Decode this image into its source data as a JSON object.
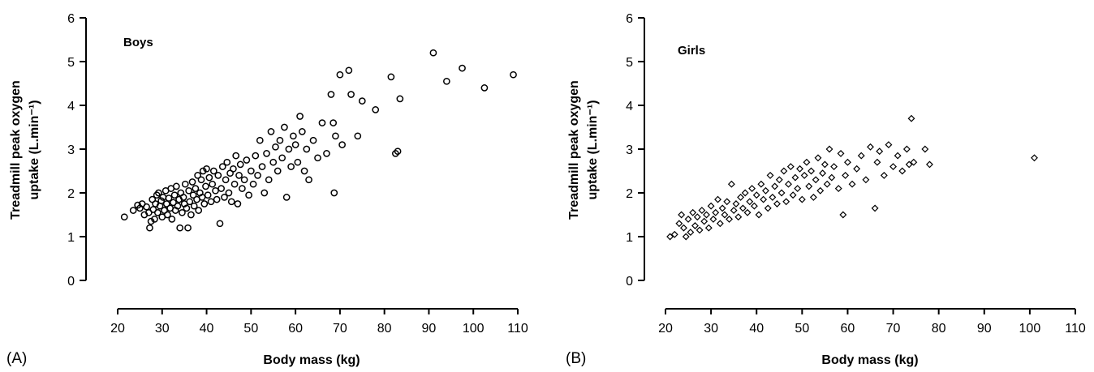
{
  "panels": [
    {
      "letter": "(A)",
      "title": "Boys",
      "ylabel_line1": "Treadmill peak oxygen",
      "ylabel_line2": "uptake (L.min⁻¹)",
      "xlabel": "Body mass (kg)"
    },
    {
      "letter": "(B)",
      "title": "Girls",
      "ylabel_line1": "Treadmill peak oxygen",
      "ylabel_line2": "uptake (L.min⁻¹)",
      "xlabel": "Body mass (kg)"
    }
  ],
  "chart_data": [
    {
      "type": "scatter",
      "title": "Boys",
      "xlabel": "Body mass (kg)",
      "ylabel": "Treadmill peak oxygen uptake (L.min⁻¹)",
      "xlim": [
        20,
        110
      ],
      "ylim": [
        0,
        6
      ],
      "xticks": [
        20,
        30,
        40,
        50,
        60,
        70,
        80,
        90,
        100,
        110
      ],
      "yticks": [
        0,
        1,
        2,
        3,
        4,
        5,
        6
      ],
      "marker": "circle",
      "series": [
        {
          "points": [
            [
              21.5,
              1.45
            ],
            [
              23.5,
              1.6
            ],
            [
              24.5,
              1.72
            ],
            [
              25,
              1.65
            ],
            [
              25.5,
              1.75
            ],
            [
              26,
              1.5
            ],
            [
              26.5,
              1.68
            ],
            [
              27,
              1.55
            ],
            [
              27.2,
              1.2
            ],
            [
              27.5,
              1.35
            ],
            [
              27.8,
              1.85
            ],
            [
              28,
              1.62
            ],
            [
              28.3,
              1.4
            ],
            [
              28.5,
              1.75
            ],
            [
              28.8,
              1.95
            ],
            [
              29,
              1.55
            ],
            [
              29.2,
              2.0
            ],
            [
              29.5,
              1.7
            ],
            [
              29.8,
              1.82
            ],
            [
              30,
              1.45
            ],
            [
              30.2,
              1.9
            ],
            [
              30.5,
              1.6
            ],
            [
              30.8,
              2.05
            ],
            [
              31,
              1.75
            ],
            [
              31.2,
              1.5
            ],
            [
              31.5,
              1.88
            ],
            [
              31.8,
              1.65
            ],
            [
              32,
              2.1
            ],
            [
              32.2,
              1.4
            ],
            [
              32.5,
              1.78
            ],
            [
              32.8,
              1.95
            ],
            [
              33,
              1.6
            ],
            [
              33.2,
              2.15
            ],
            [
              33.5,
              1.7
            ],
            [
              33.8,
              1.85
            ],
            [
              34,
              1.2
            ],
            [
              34.2,
              2.0
            ],
            [
              34.5,
              1.55
            ],
            [
              34.8,
              1.9
            ],
            [
              35,
              1.75
            ],
            [
              35.2,
              2.2
            ],
            [
              35.5,
              1.65
            ],
            [
              35.8,
              1.2
            ],
            [
              36,
              2.05
            ],
            [
              36.2,
              1.8
            ],
            [
              36.5,
              1.5
            ],
            [
              36.8,
              2.25
            ],
            [
              37,
              1.95
            ],
            [
              37.2,
              1.7
            ],
            [
              37.5,
              2.1
            ],
            [
              37.8,
              1.85
            ],
            [
              38,
              2.4
            ],
            [
              38.2,
              1.6
            ],
            [
              38.5,
              2.0
            ],
            [
              38.8,
              2.3
            ],
            [
              39,
              1.9
            ],
            [
              39.2,
              2.5
            ],
            [
              39.5,
              1.75
            ],
            [
              39.8,
              2.15
            ],
            [
              40,
              2.55
            ],
            [
              40.3,
              1.95
            ],
            [
              40.6,
              2.35
            ],
            [
              41,
              1.8
            ],
            [
              41.3,
              2.2
            ],
            [
              41.6,
              2.5
            ],
            [
              42,
              2.05
            ],
            [
              42.3,
              1.85
            ],
            [
              42.6,
              2.4
            ],
            [
              43,
              1.3
            ],
            [
              43.3,
              2.1
            ],
            [
              43.6,
              2.6
            ],
            [
              44,
              1.9
            ],
            [
              44.3,
              2.3
            ],
            [
              44.6,
              2.7
            ],
            [
              45,
              2.0
            ],
            [
              45.3,
              2.45
            ],
            [
              45.6,
              1.8
            ],
            [
              46,
              2.55
            ],
            [
              46.3,
              2.2
            ],
            [
              46.6,
              2.85
            ],
            [
              47,
              1.75
            ],
            [
              47.3,
              2.4
            ],
            [
              47.6,
              2.65
            ],
            [
              48,
              2.1
            ],
            [
              48.5,
              2.3
            ],
            [
              49,
              2.75
            ],
            [
              49.5,
              1.95
            ],
            [
              50,
              2.5
            ],
            [
              50.5,
              2.2
            ],
            [
              51,
              2.85
            ],
            [
              51.5,
              2.4
            ],
            [
              52,
              3.2
            ],
            [
              52.5,
              2.6
            ],
            [
              53,
              2.0
            ],
            [
              53.5,
              2.9
            ],
            [
              54,
              2.3
            ],
            [
              54.5,
              3.4
            ],
            [
              55,
              2.7
            ],
            [
              55.5,
              3.05
            ],
            [
              56,
              2.5
            ],
            [
              56.5,
              3.2
            ],
            [
              57,
              2.8
            ],
            [
              57.5,
              3.5
            ],
            [
              58,
              1.9
            ],
            [
              58.5,
              3.0
            ],
            [
              59,
              2.6
            ],
            [
              59.5,
              3.3
            ],
            [
              60,
              3.1
            ],
            [
              60.5,
              2.7
            ],
            [
              61,
              3.75
            ],
            [
              61.5,
              3.4
            ],
            [
              62,
              2.5
            ],
            [
              62.5,
              3.0
            ],
            [
              63,
              2.3
            ],
            [
              64,
              3.2
            ],
            [
              65,
              2.8
            ],
            [
              66,
              3.6
            ],
            [
              67,
              2.9
            ],
            [
              68,
              4.25
            ],
            [
              68.5,
              3.6
            ],
            [
              68.7,
              2.0
            ],
            [
              69,
              3.3
            ],
            [
              70,
              4.7
            ],
            [
              70.5,
              3.1
            ],
            [
              72,
              4.8
            ],
            [
              72.5,
              4.25
            ],
            [
              74,
              3.3
            ],
            [
              75,
              4.1
            ],
            [
              78,
              3.9
            ],
            [
              81.5,
              4.65
            ],
            [
              82.5,
              2.9
            ],
            [
              83,
              2.95
            ],
            [
              83.5,
              4.15
            ],
            [
              91,
              5.2
            ],
            [
              94,
              4.55
            ],
            [
              97.5,
              4.85
            ],
            [
              102.5,
              4.4
            ],
            [
              109,
              4.7
            ]
          ]
        }
      ]
    },
    {
      "type": "scatter",
      "title": "Girls",
      "xlabel": "Body mass (kg)",
      "ylabel": "Treadmill peak oxygen uptake (L.min⁻¹)",
      "xlim": [
        20,
        110
      ],
      "ylim": [
        0,
        6
      ],
      "xticks": [
        20,
        30,
        40,
        50,
        60,
        70,
        80,
        90,
        100,
        110
      ],
      "yticks": [
        0,
        1,
        2,
        3,
        4,
        5,
        6
      ],
      "marker": "diamond",
      "series": [
        {
          "points": [
            [
              21,
              1.0
            ],
            [
              22,
              1.05
            ],
            [
              23,
              1.3
            ],
            [
              23.5,
              1.5
            ],
            [
              24,
              1.2
            ],
            [
              24.5,
              1.0
            ],
            [
              25,
              1.4
            ],
            [
              25.5,
              1.1
            ],
            [
              26,
              1.55
            ],
            [
              26.5,
              1.25
            ],
            [
              27,
              1.45
            ],
            [
              27.5,
              1.15
            ],
            [
              28,
              1.6
            ],
            [
              28.5,
              1.35
            ],
            [
              29,
              1.5
            ],
            [
              29.5,
              1.2
            ],
            [
              30,
              1.7
            ],
            [
              30.5,
              1.4
            ],
            [
              31,
              1.55
            ],
            [
              31.5,
              1.85
            ],
            [
              32,
              1.3
            ],
            [
              32.5,
              1.65
            ],
            [
              33,
              1.5
            ],
            [
              33.5,
              1.8
            ],
            [
              34,
              1.4
            ],
            [
              34.5,
              2.2
            ],
            [
              35,
              1.6
            ],
            [
              35.5,
              1.75
            ],
            [
              36,
              1.45
            ],
            [
              36.5,
              1.9
            ],
            [
              37,
              1.65
            ],
            [
              37.5,
              2.0
            ],
            [
              38,
              1.55
            ],
            [
              38.5,
              1.8
            ],
            [
              39,
              2.1
            ],
            [
              39.5,
              1.7
            ],
            [
              40,
              1.95
            ],
            [
              40.5,
              1.5
            ],
            [
              41,
              2.2
            ],
            [
              41.5,
              1.85
            ],
            [
              42,
              2.05
            ],
            [
              42.5,
              1.65
            ],
            [
              43,
              2.4
            ],
            [
              43.5,
              1.9
            ],
            [
              44,
              2.15
            ],
            [
              44.5,
              1.75
            ],
            [
              45,
              2.3
            ],
            [
              45.5,
              2.0
            ],
            [
              46,
              2.5
            ],
            [
              46.5,
              1.8
            ],
            [
              47,
              2.2
            ],
            [
              47.5,
              2.6
            ],
            [
              48,
              1.95
            ],
            [
              48.5,
              2.35
            ],
            [
              49,
              2.1
            ],
            [
              49.5,
              2.55
            ],
            [
              50,
              1.85
            ],
            [
              50.5,
              2.4
            ],
            [
              51,
              2.7
            ],
            [
              51.5,
              2.15
            ],
            [
              52,
              2.5
            ],
            [
              52.5,
              1.9
            ],
            [
              53,
              2.3
            ],
            [
              53.5,
              2.8
            ],
            [
              54,
              2.05
            ],
            [
              54.5,
              2.45
            ],
            [
              55,
              2.65
            ],
            [
              55.5,
              2.2
            ],
            [
              56,
              3.0
            ],
            [
              56.5,
              2.35
            ],
            [
              57,
              2.6
            ],
            [
              58,
              2.1
            ],
            [
              58.5,
              2.9
            ],
            [
              59,
              1.5
            ],
            [
              59.5,
              2.4
            ],
            [
              60,
              2.7
            ],
            [
              61,
              2.2
            ],
            [
              62,
              2.55
            ],
            [
              63,
              2.85
            ],
            [
              64,
              2.3
            ],
            [
              65,
              3.05
            ],
            [
              66,
              1.65
            ],
            [
              66.5,
              2.7
            ],
            [
              67,
              2.95
            ],
            [
              68,
              2.4
            ],
            [
              69,
              3.1
            ],
            [
              70,
              2.6
            ],
            [
              71,
              2.85
            ],
            [
              72,
              2.5
            ],
            [
              73,
              3.0
            ],
            [
              73.5,
              2.65
            ],
            [
              74,
              3.7
            ],
            [
              74.5,
              2.7
            ],
            [
              77,
              3.0
            ],
            [
              78,
              2.65
            ],
            [
              101,
              2.8
            ]
          ]
        }
      ]
    }
  ]
}
